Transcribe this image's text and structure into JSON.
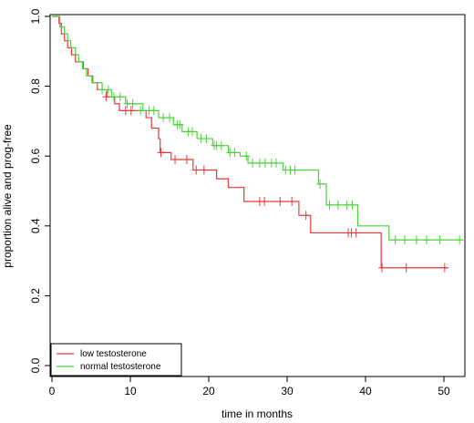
{
  "chart_data": {
    "type": "line",
    "title": "",
    "xlabel": "time in months",
    "ylabel": "proportion alive and prog-free",
    "xlim": [
      0,
      52
    ],
    "ylim": [
      0,
      1.0
    ],
    "x_ticks": [
      0,
      10,
      20,
      30,
      40,
      50
    ],
    "y_ticks": [
      0.0,
      0.2,
      0.4,
      0.6,
      0.8,
      1.0
    ],
    "x_tick_labels": [
      "0",
      "10",
      "20",
      "30",
      "40",
      "50"
    ],
    "y_tick_labels": [
      "0.0",
      "0.2",
      "0.4",
      "0.6",
      "0.8",
      "1.0"
    ],
    "grid": false,
    "legend_position": "bottom-left",
    "series": [
      {
        "name": "low testosterone",
        "color": "#e8393a",
        "steps": [
          [
            0,
            1.0
          ],
          [
            0.9,
            0.98
          ],
          [
            1.2,
            0.95
          ],
          [
            1.6,
            0.93
          ],
          [
            2.0,
            0.91
          ],
          [
            2.5,
            0.89
          ],
          [
            3.0,
            0.87
          ],
          [
            4.0,
            0.85
          ],
          [
            4.6,
            0.83
          ],
          [
            5.2,
            0.81
          ],
          [
            5.8,
            0.79
          ],
          [
            7.0,
            0.77
          ],
          [
            8.0,
            0.75
          ],
          [
            8.6,
            0.73
          ],
          [
            12.0,
            0.71
          ],
          [
            12.7,
            0.68
          ],
          [
            13.6,
            0.65
          ],
          [
            13.8,
            0.61
          ],
          [
            15.2,
            0.59
          ],
          [
            18.0,
            0.56
          ],
          [
            21.0,
            0.535
          ],
          [
            22.5,
            0.51
          ],
          [
            24.5,
            0.47
          ],
          [
            31.5,
            0.43
          ],
          [
            33.0,
            0.38
          ],
          [
            42.0,
            0.28
          ],
          [
            50.5,
            0.28
          ]
        ],
        "censored": [
          [
            6.9,
            0.77
          ],
          [
            9.4,
            0.73
          ],
          [
            10.1,
            0.73
          ],
          [
            13.9,
            0.61
          ],
          [
            15.7,
            0.59
          ],
          [
            17.2,
            0.59
          ],
          [
            18.4,
            0.56
          ],
          [
            19.4,
            0.56
          ],
          [
            26.5,
            0.47
          ],
          [
            27.1,
            0.47
          ],
          [
            29.1,
            0.47
          ],
          [
            30.6,
            0.47
          ],
          [
            32.4,
            0.43
          ],
          [
            37.8,
            0.38
          ],
          [
            38.2,
            0.38
          ],
          [
            38.8,
            0.38
          ],
          [
            42.1,
            0.28
          ],
          [
            45.2,
            0.28
          ],
          [
            50.1,
            0.28
          ]
        ]
      },
      {
        "name": "normal testosterone",
        "color": "#4bd23b",
        "steps": [
          [
            0,
            1.0
          ],
          [
            1.0,
            0.97
          ],
          [
            1.6,
            0.95
          ],
          [
            2.0,
            0.93
          ],
          [
            2.4,
            0.91
          ],
          [
            3.0,
            0.89
          ],
          [
            3.4,
            0.87
          ],
          [
            3.9,
            0.85
          ],
          [
            4.4,
            0.83
          ],
          [
            5.1,
            0.81
          ],
          [
            6.4,
            0.79
          ],
          [
            7.6,
            0.77
          ],
          [
            9.4,
            0.75
          ],
          [
            11.6,
            0.73
          ],
          [
            13.6,
            0.71
          ],
          [
            15.5,
            0.69
          ],
          [
            16.6,
            0.67
          ],
          [
            18.5,
            0.65
          ],
          [
            20.5,
            0.63
          ],
          [
            22.5,
            0.61
          ],
          [
            24.0,
            0.6
          ],
          [
            25.0,
            0.58
          ],
          [
            29.5,
            0.56
          ],
          [
            34.0,
            0.52
          ],
          [
            35.0,
            0.46
          ],
          [
            39.0,
            0.4
          ],
          [
            43.0,
            0.36
          ],
          [
            52.5,
            0.36
          ]
        ],
        "censored": [
          [
            6.4,
            0.79
          ],
          [
            7.2,
            0.79
          ],
          [
            7.9,
            0.77
          ],
          [
            8.7,
            0.77
          ],
          [
            9.6,
            0.75
          ],
          [
            10.3,
            0.75
          ],
          [
            11.3,
            0.73
          ],
          [
            12.4,
            0.73
          ],
          [
            13.0,
            0.73
          ],
          [
            14.2,
            0.71
          ],
          [
            15.0,
            0.71
          ],
          [
            16.0,
            0.69
          ],
          [
            16.3,
            0.69
          ],
          [
            17.4,
            0.67
          ],
          [
            17.9,
            0.67
          ],
          [
            19.0,
            0.65
          ],
          [
            19.7,
            0.65
          ],
          [
            20.7,
            0.63
          ],
          [
            21.0,
            0.63
          ],
          [
            21.6,
            0.63
          ],
          [
            22.7,
            0.61
          ],
          [
            23.3,
            0.61
          ],
          [
            24.8,
            0.6
          ],
          [
            25.6,
            0.58
          ],
          [
            26.5,
            0.58
          ],
          [
            27.2,
            0.58
          ],
          [
            28.0,
            0.58
          ],
          [
            28.6,
            0.58
          ],
          [
            29.8,
            0.56
          ],
          [
            30.4,
            0.56
          ],
          [
            31.0,
            0.56
          ],
          [
            34.2,
            0.52
          ],
          [
            35.4,
            0.46
          ],
          [
            36.5,
            0.46
          ],
          [
            37.6,
            0.46
          ],
          [
            38.3,
            0.46
          ],
          [
            43.8,
            0.36
          ],
          [
            45.0,
            0.36
          ],
          [
            46.5,
            0.36
          ],
          [
            47.8,
            0.36
          ],
          [
            49.5,
            0.36
          ],
          [
            52.0,
            0.36
          ]
        ]
      }
    ]
  }
}
